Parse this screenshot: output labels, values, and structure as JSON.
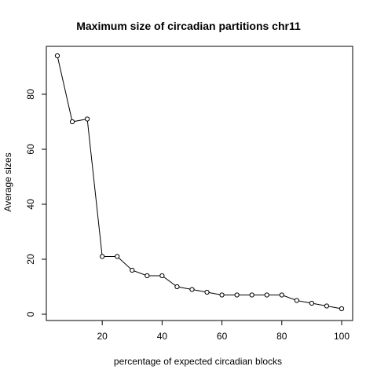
{
  "chart_data": {
    "type": "line",
    "title": "Maximum size of circadian partitions chr11",
    "xlabel": "percentage of expected circadian blocks",
    "ylabel": "Average sizes",
    "x": [
      5,
      10,
      15,
      20,
      25,
      30,
      35,
      40,
      45,
      50,
      55,
      60,
      65,
      70,
      75,
      80,
      85,
      90,
      95,
      100
    ],
    "series": [
      {
        "values": [
          94,
          70,
          71,
          21,
          21,
          16,
          14,
          14,
          10,
          9,
          8,
          7,
          7,
          7,
          7,
          7,
          5,
          4,
          3,
          2
        ]
      }
    ],
    "xlim": [
      5,
      100
    ],
    "ylim": [
      2,
      94
    ],
    "x_ticks": [
      20,
      40,
      60,
      80,
      100
    ],
    "y_ticks": [
      0,
      20,
      40,
      60,
      80
    ],
    "x_tick_labels": [
      "20",
      "40",
      "60",
      "80",
      "100"
    ],
    "y_tick_labels": [
      "0",
      "20",
      "40",
      "60",
      "80"
    ],
    "grid": false,
    "marker": "open-circle",
    "line_color": "#000000",
    "background_color": "#ffffff"
  }
}
